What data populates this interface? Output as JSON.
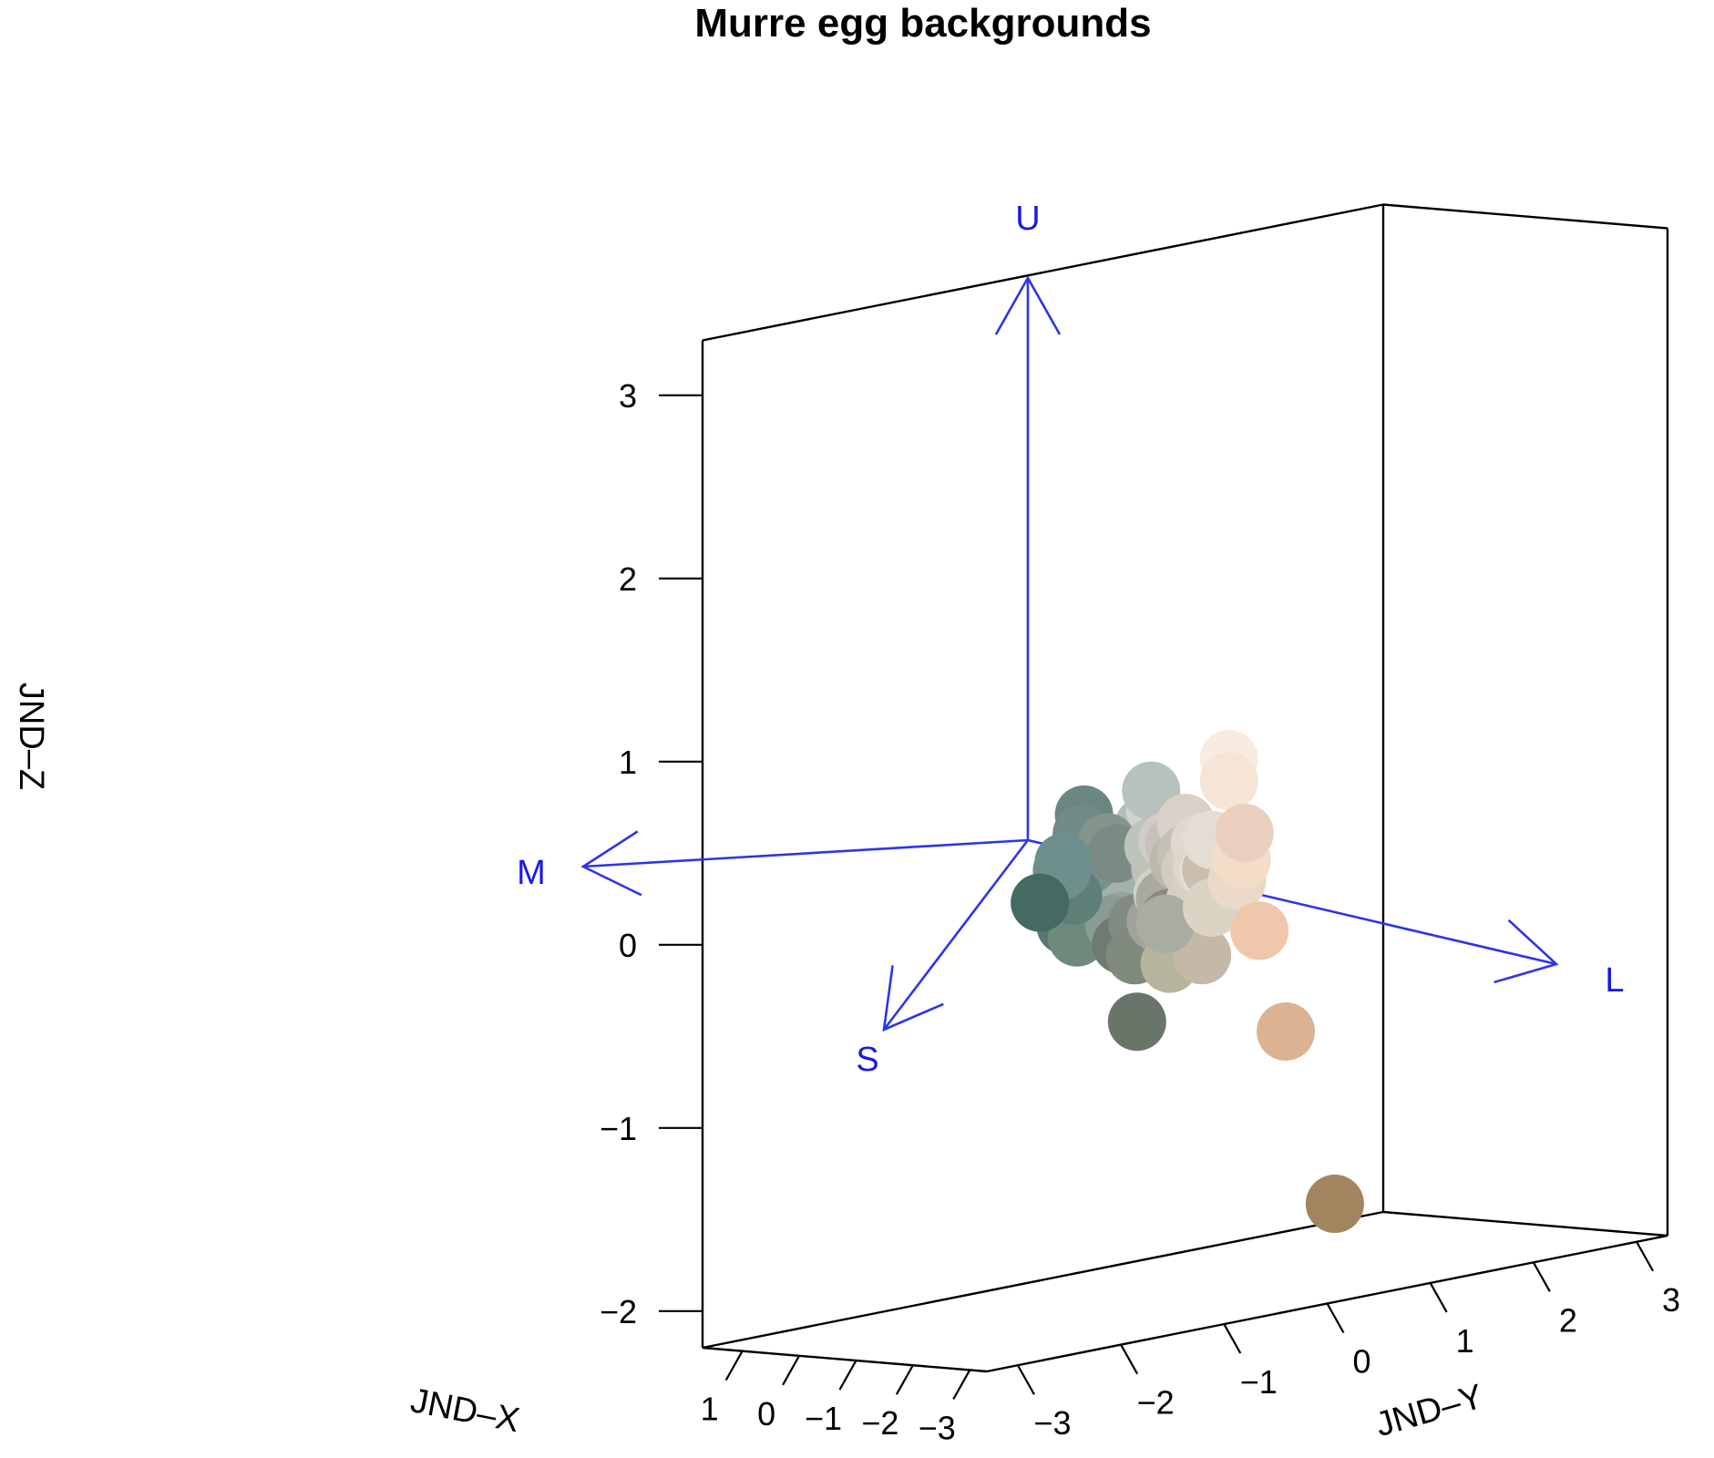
{
  "chart_data": {
    "type": "scatter",
    "title": "Murre egg backgrounds",
    "xlabel": "JND–X",
    "ylabel": "JND–Y",
    "zlabel": "JND–Z",
    "xlim": [
      -3.3,
      1.7
    ],
    "ylim": [
      -3.3,
      3.3
    ],
    "zlim": [
      -2.2,
      3.3
    ],
    "x_ticks": [
      "−3",
      "−2",
      "−1",
      "0",
      "1"
    ],
    "y_ticks": [
      "−3",
      "−2",
      "−1",
      "0",
      "1",
      "2",
      "3"
    ],
    "z_ticks": [
      "−2",
      "−1",
      "0",
      "1",
      "2",
      "3"
    ],
    "receptor_vectors": [
      {
        "label": "U"
      },
      {
        "label": "M"
      },
      {
        "label": "L"
      },
      {
        "label": "S"
      }
    ],
    "points": [
      {
        "x": -2.6,
        "y": -2.4,
        "z": 0.24,
        "color": "#456a62"
      },
      {
        "x": -1.9,
        "y": -1.8,
        "z": 0.33,
        "color": "#6e908d"
      },
      {
        "x": -1.75,
        "y": -1.7,
        "z": 0.36,
        "color": "#6d8f8c"
      },
      {
        "x": -1.5,
        "y": -1.5,
        "z": 0.22,
        "color": "#6c8a85"
      },
      {
        "x": -1.6,
        "y": -1.6,
        "z": 0.0,
        "color": "#5a7770"
      },
      {
        "x": -1.55,
        "y": -1.5,
        "z": 0.15,
        "color": "#5f7f79"
      },
      {
        "x": -1.2,
        "y": -1.2,
        "z": 0.55,
        "color": "#6b8583"
      },
      {
        "x": -1.25,
        "y": -1.25,
        "z": 0.45,
        "color": "#718c88"
      },
      {
        "x": -1.0,
        "y": -1.05,
        "z": 0.38,
        "color": "#7b9793"
      },
      {
        "x": -1.1,
        "y": -1.1,
        "z": 0.26,
        "color": "#779390"
      },
      {
        "x": -1.15,
        "y": -1.2,
        "z": 0.1,
        "color": "#6f8a82"
      },
      {
        "x": -1.05,
        "y": -1.1,
        "z": 0.06,
        "color": "#6a8479"
      },
      {
        "x": -1.3,
        "y": -1.3,
        "z": 0.02,
        "color": "#7a948b"
      },
      {
        "x": -1.35,
        "y": -1.35,
        "z": -0.1,
        "color": "#6e8a7c"
      },
      {
        "x": -0.7,
        "y": -0.7,
        "z": 0.33,
        "color": "#84958c"
      },
      {
        "x": -0.5,
        "y": -0.5,
        "z": 0.24,
        "color": "#7b8a84"
      },
      {
        "x": -0.55,
        "y": -0.55,
        "z": -0.14,
        "color": "#8a9b93"
      },
      {
        "x": -0.3,
        "y": -0.35,
        "z": -0.15,
        "color": "#94a59d"
      },
      {
        "x": -0.4,
        "y": -0.4,
        "z": -0.27,
        "color": "#6f7a71"
      },
      {
        "x": -0.15,
        "y": -0.2,
        "z": 0.01,
        "color": "#a2b2ab"
      },
      {
        "x": 0.05,
        "y": 0.0,
        "z": -0.03,
        "color": "#a4b3a9"
      },
      {
        "x": -0.05,
        "y": -0.05,
        "z": -0.2,
        "color": "#818b81"
      },
      {
        "x": -0.1,
        "y": -0.1,
        "z": -0.37,
        "color": "#7f8a7c"
      },
      {
        "x": 0.05,
        "y": 0.0,
        "z": -0.3,
        "color": "#9da89d"
      },
      {
        "x": 0.15,
        "y": 0.1,
        "z": -0.27,
        "color": "#a7b1a8"
      },
      {
        "x": 0.2,
        "y": 0.15,
        "z": 0.3,
        "color": "#b1bdb7"
      },
      {
        "x": 0.25,
        "y": 0.25,
        "z": 0.48,
        "color": "#b7c1bd"
      },
      {
        "x": 0.3,
        "y": 0.3,
        "z": 0.17,
        "color": "#bcc4bd"
      },
      {
        "x": 0.45,
        "y": 0.4,
        "z": 0.35,
        "color": "#cfd3cd"
      },
      {
        "x": 0.45,
        "y": 0.45,
        "z": 0.03,
        "color": "#bfc2b9"
      },
      {
        "x": 0.35,
        "y": 0.35,
        "z": -0.25,
        "color": "#9fa39a"
      },
      {
        "x": 0.45,
        "y": 0.5,
        "z": -0.28,
        "color": "#a8aca2"
      },
      {
        "x": 0.5,
        "y": 0.5,
        "z": -0.12,
        "color": "#cdd6c3"
      },
      {
        "x": 0.6,
        "y": 0.55,
        "z": 0.0,
        "color": "#a8aca0"
      },
      {
        "x": 0.55,
        "y": 0.55,
        "z": -0.15,
        "color": "#a9a99e"
      },
      {
        "x": 0.6,
        "y": 0.6,
        "z": 0.16,
        "color": "#cfcdc5"
      },
      {
        "x": 0.65,
        "y": 0.65,
        "z": -0.27,
        "color": "#898a80"
      },
      {
        "x": 0.75,
        "y": 0.75,
        "z": 0.12,
        "color": "#c6c2bb"
      },
      {
        "x": 0.75,
        "y": 0.7,
        "z": -0.13,
        "color": "#b4b3a5"
      },
      {
        "x": 0.65,
        "y": 0.65,
        "z": -0.52,
        "color": "#b4b59c"
      },
      {
        "x": 0.85,
        "y": 0.85,
        "z": 0.01,
        "color": "#bdb8ae"
      },
      {
        "x": 1.0,
        "y": 1.0,
        "z": 0.2,
        "color": "#d9d1c7"
      },
      {
        "x": 1.0,
        "y": 1.0,
        "z": 0.03,
        "color": "#c6bfb4"
      },
      {
        "x": 1.1,
        "y": 1.1,
        "z": -0.07,
        "color": "#d3ccc1"
      },
      {
        "x": 1.3,
        "y": 1.3,
        "z": 0.05,
        "color": "#dfd8ce"
      },
      {
        "x": 1.2,
        "y": 1.2,
        "z": -0.25,
        "color": "#d6cfc4"
      },
      {
        "x": 1.35,
        "y": 1.35,
        "z": -0.09,
        "color": "#ddd6ca"
      },
      {
        "x": 1.35,
        "y": 1.35,
        "z": -0.57,
        "color": "#c5b8a7"
      },
      {
        "x": 1.45,
        "y": 1.5,
        "z": 0.04,
        "color": "#e4ddd3"
      },
      {
        "x": 1.5,
        "y": 1.5,
        "z": -0.13,
        "color": "#e6e0d6"
      },
      {
        "x": 1.45,
        "y": 1.5,
        "z": -0.33,
        "color": "#dcd3c5"
      },
      {
        "x": 1.55,
        "y": 1.55,
        "z": -0.13,
        "color": "#cbbdaf"
      },
      {
        "x": 1.6,
        "y": 1.75,
        "z": 0.45,
        "color": "#f8ece2"
      },
      {
        "x": 1.6,
        "y": 1.75,
        "z": 0.33,
        "color": "#f6e5d6"
      },
      {
        "x": 1.55,
        "y": 1.8,
        "z": -0.22,
        "color": "#ead9c8"
      },
      {
        "x": 1.6,
        "y": 1.9,
        "z": 0.03,
        "color": "#eacfbe"
      },
      {
        "x": 1.65,
        "y": 1.9,
        "z": -0.12,
        "color": "#f3dcc8"
      },
      {
        "x": 1.7,
        "y": 2.1,
        "z": -0.53,
        "color": "#efc7ab"
      },
      {
        "x": 1.6,
        "y": 2.3,
        "z": -1.1,
        "color": "#dcb392"
      },
      {
        "x": 1.1,
        "y": 2.5,
        "z": -2.05,
        "color": "#a1855f"
      },
      {
        "x": -0.5,
        "y": -0.3,
        "z": -0.7,
        "color": "#6a7569"
      }
    ]
  }
}
